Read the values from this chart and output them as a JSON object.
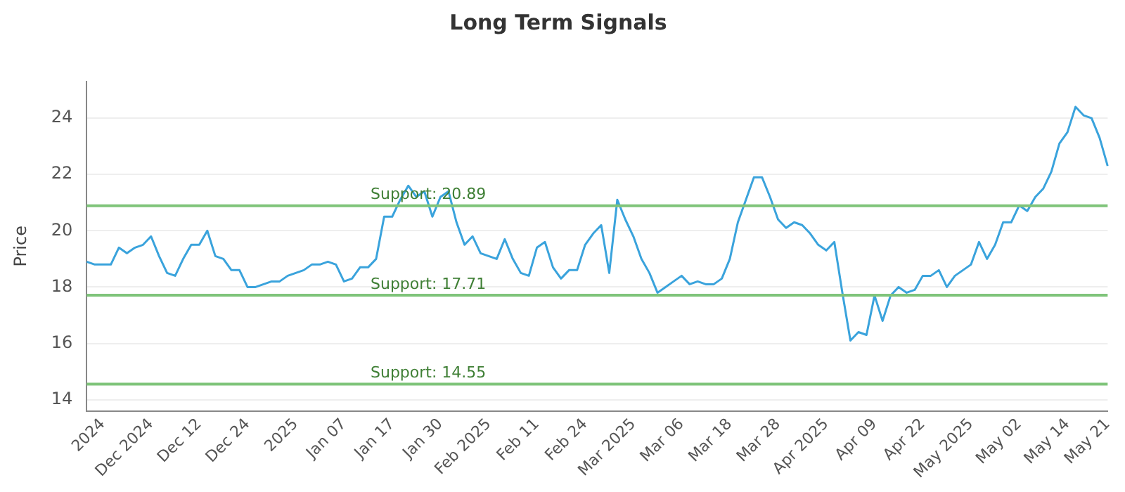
{
  "chart_data": {
    "type": "line",
    "title": "Long Term Signals",
    "ylabel": "Price",
    "categories": [
      null,
      null,
      "2024",
      null,
      null,
      null,
      null,
      null,
      "Dec 2024",
      null,
      null,
      null,
      null,
      null,
      "Dec 12",
      null,
      null,
      null,
      null,
      null,
      "Dec 24",
      null,
      null,
      null,
      null,
      null,
      "2025",
      null,
      null,
      null,
      null,
      null,
      "Jan 07",
      null,
      null,
      null,
      null,
      null,
      "Jan 17",
      null,
      null,
      null,
      null,
      null,
      "Jan 30",
      null,
      null,
      null,
      null,
      null,
      "Feb 2025",
      null,
      null,
      null,
      null,
      null,
      "Feb 11",
      null,
      null,
      null,
      null,
      null,
      "Feb 24",
      null,
      null,
      null,
      null,
      null,
      "Mar 2025",
      null,
      null,
      null,
      null,
      null,
      "Mar 06",
      null,
      null,
      null,
      null,
      null,
      "Mar 18",
      null,
      null,
      null,
      null,
      null,
      "Mar 28",
      null,
      null,
      null,
      null,
      null,
      "Apr 2025",
      null,
      null,
      null,
      null,
      null,
      "Apr 09",
      null,
      null,
      null,
      null,
      null,
      "Apr 22",
      null,
      null,
      null,
      null,
      null,
      "May 2025",
      null,
      null,
      null,
      null,
      null,
      "May 02",
      null,
      null,
      null,
      null,
      null,
      "May 14",
      null,
      null,
      null,
      null,
      "May 21"
    ],
    "series": [
      {
        "color": "#3aa3dc",
        "values": [
          18.9,
          18.8,
          18.8,
          18.8,
          19.4,
          19.2,
          19.4,
          19.5,
          19.8,
          19.1,
          18.5,
          18.4,
          19.0,
          19.5,
          19.5,
          20.0,
          19.1,
          19.0,
          18.6,
          18.6,
          18.0,
          18.0,
          18.1,
          18.2,
          18.2,
          18.4,
          18.5,
          18.6,
          18.8,
          18.8,
          18.9,
          18.8,
          18.2,
          18.3,
          18.7,
          18.7,
          19.0,
          20.5,
          20.5,
          21.1,
          21.6,
          21.2,
          21.4,
          20.5,
          21.2,
          21.4,
          20.3,
          19.5,
          19.8,
          19.2,
          19.1,
          19.0,
          19.7,
          19.0,
          18.5,
          18.4,
          19.4,
          19.6,
          18.7,
          18.3,
          18.6,
          18.6,
          19.5,
          19.9,
          20.2,
          18.5,
          21.1,
          20.4,
          19.8,
          19.0,
          18.5,
          17.8,
          18.0,
          18.2,
          18.4,
          18.1,
          18.2,
          18.1,
          18.1,
          18.3,
          19.0,
          20.3,
          21.1,
          21.9,
          21.9,
          21.2,
          20.4,
          20.1,
          20.3,
          20.2,
          19.9,
          19.5,
          19.3,
          19.6,
          17.8,
          16.1,
          16.4,
          16.3,
          17.7,
          16.8,
          17.7,
          18.0,
          17.8,
          17.9,
          18.4,
          18.4,
          18.6,
          18.0,
          18.4,
          18.6,
          18.8,
          19.6,
          19.0,
          19.5,
          20.3,
          20.3,
          20.9,
          20.7,
          21.2,
          21.5,
          22.1,
          23.1,
          23.5,
          24.4,
          24.1,
          24.0,
          23.3,
          22.3
        ]
      }
    ],
    "ylim": [
      13.6,
      25.3
    ],
    "yticks": [
      14,
      16,
      18,
      20,
      22,
      24
    ],
    "grid": "y",
    "marker": "none",
    "line_style": "solid",
    "ref_lines": [
      {
        "axis": "y",
        "value": 20.89,
        "label": "Support: 20.89",
        "color": "#7fc47a"
      },
      {
        "axis": "y",
        "value": 17.71,
        "label": "Support: 17.71",
        "color": "#7fc47a"
      },
      {
        "axis": "y",
        "value": 14.55,
        "label": "Support: 14.55",
        "color": "#7fc47a"
      }
    ]
  }
}
